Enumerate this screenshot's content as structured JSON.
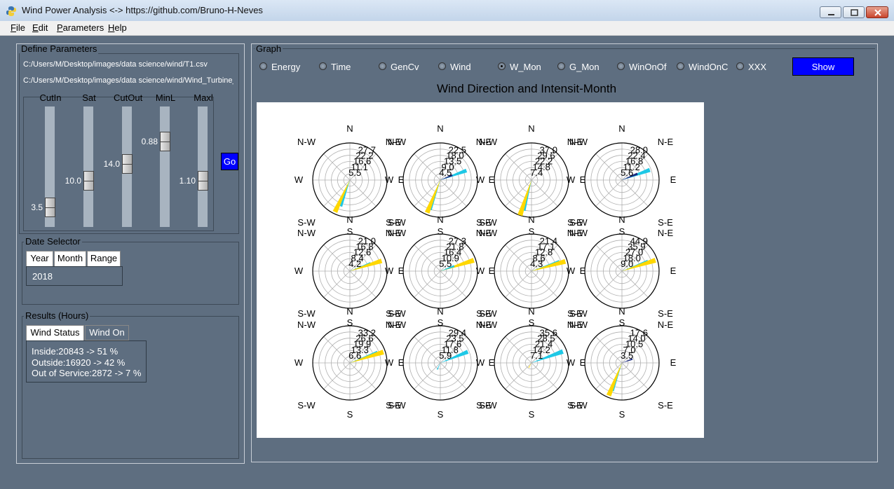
{
  "window": {
    "title": "Wind Power Analysis <-> https://github.com/Bruno-H-Neves"
  },
  "menu": [
    "File",
    "Edit",
    "Parameters",
    "Help"
  ],
  "define": {
    "legend": "Define Parameters",
    "path1": "C:/Users/M/Desktop/images/data science/wind/T1.csv",
    "path2": "C:/Users/M/Desktop/images/data science/wind/Wind_Turbine_",
    "sliders": [
      {
        "label": "CutIn",
        "value": "3.5",
        "level": 0.9
      },
      {
        "label": "Sat",
        "value": "10.0",
        "level": 0.64
      },
      {
        "label": "CutOut",
        "value": "14.0",
        "level": 0.47
      },
      {
        "label": "MinL",
        "value": "0.88",
        "level": 0.25
      },
      {
        "label": "Maxl",
        "value": "1.10",
        "level": 0.64
      }
    ],
    "go": "Go"
  },
  "date": {
    "legend": "Date Selector",
    "tabs": [
      "Year",
      "Month",
      "Range"
    ],
    "value": "2018"
  },
  "results": {
    "legend": "Results (Hours)",
    "tabs": [
      "Wind Status",
      "Wind On"
    ],
    "lines": [
      "Inside:20843 -> 51 %",
      "Outside:16920 -> 42 %",
      "Out of Service:2872 -> 7 %"
    ]
  },
  "graph": {
    "legend": "Graph",
    "options": [
      "Energy",
      "Time",
      "GenCv",
      "Wind",
      "W_Mon",
      "G_Mon",
      "WinOnOf",
      "WindOnC",
      "XXX"
    ],
    "selected": "W_Mon",
    "show": "Show"
  },
  "chart_data": {
    "type": "polar-bar",
    "title": "Wind Direction and Intensit-Month",
    "direction_labels": [
      "N",
      "N-E",
      "E",
      "S-E",
      "S",
      "S-W",
      "W",
      "N-W"
    ],
    "panels": [
      {
        "rings": [
          "5.5",
          "11.1",
          "16.6",
          "22.2",
          "27.7"
        ],
        "bars": [
          {
            "angle": 200,
            "value": 0.75,
            "color": "#1ec8e6"
          },
          {
            "angle": 205,
            "value": 0.95,
            "color": "#ffd700"
          }
        ]
      },
      {
        "rings": [
          "4.5",
          "9.0",
          "13.5",
          "18.0",
          "22.5"
        ],
        "bars": [
          {
            "angle": 70,
            "value": 0.75,
            "color": "#1ec8e6"
          },
          {
            "angle": 200,
            "value": 0.85,
            "color": "#1ec8e6"
          },
          {
            "angle": 202,
            "value": 0.95,
            "color": "#ffd700"
          },
          {
            "angle": 68,
            "value": 0.35,
            "color": "#1a2a80"
          }
        ]
      },
      {
        "rings": [
          "7.4",
          "14.8",
          "22.2",
          "29.6",
          "37.0"
        ],
        "bars": [
          {
            "angle": 195,
            "value": 0.85,
            "color": "#1ec8e6"
          },
          {
            "angle": 198,
            "value": 1.0,
            "color": "#ffd700"
          }
        ]
      },
      {
        "rings": [
          "5.6",
          "11.2",
          "16.8",
          "22.4",
          "28.0"
        ],
        "bars": [
          {
            "angle": 70,
            "value": 0.8,
            "color": "#1ec8e6"
          },
          {
            "angle": 68,
            "value": 0.45,
            "color": "#1a2a80"
          }
        ]
      },
      {
        "rings": [
          "4.2",
          "8.4",
          "12.6",
          "16.8",
          "21.0"
        ],
        "bars": [
          {
            "angle": 70,
            "value": 0.6,
            "color": "#1ec8e6"
          },
          {
            "angle": 72,
            "value": 0.9,
            "color": "#ffd700"
          }
        ]
      },
      {
        "rings": [
          "5.5",
          "10.9",
          "16.4",
          "21.8",
          "27.3"
        ],
        "bars": [
          {
            "angle": 72,
            "value": 0.95,
            "color": "#ffd700"
          },
          {
            "angle": 70,
            "value": 0.4,
            "color": "#1ec8e6"
          }
        ]
      },
      {
        "rings": [
          "4.3",
          "8.6",
          "12.8",
          "17.1",
          "21.4"
        ],
        "bars": [
          {
            "angle": 72,
            "value": 0.8,
            "color": "#1ec8e6"
          },
          {
            "angle": 74,
            "value": 0.95,
            "color": "#ffd700"
          }
        ]
      },
      {
        "rings": [
          "9.0",
          "18.0",
          "27.0",
          "35.9",
          "44.9"
        ],
        "bars": [
          {
            "angle": 70,
            "value": 0.75,
            "color": "#1ec8e6"
          },
          {
            "angle": 72,
            "value": 0.95,
            "color": "#ffd700"
          }
        ]
      },
      {
        "rings": [
          "6.6",
          "13.3",
          "19.9",
          "26.6",
          "33.2"
        ],
        "bars": [
          {
            "angle": 70,
            "value": 0.8,
            "color": "#1ec8e6"
          },
          {
            "angle": 72,
            "value": 0.95,
            "color": "#ffd700"
          }
        ]
      },
      {
        "rings": [
          "5.9",
          "11.8",
          "17.6",
          "23.5",
          "29.4"
        ],
        "bars": [
          {
            "angle": 68,
            "value": 0.8,
            "color": "#1ec8e6"
          },
          {
            "angle": 205,
            "value": 0.2,
            "color": "#1ec8e6"
          }
        ]
      },
      {
        "rings": [
          "7.1",
          "14.2",
          "21.4",
          "28.5",
          "35.6"
        ],
        "bars": [
          {
            "angle": 70,
            "value": 0.9,
            "color": "#1ec8e6"
          },
          {
            "angle": 210,
            "value": 0.15,
            "color": "#ffd700"
          }
        ]
      },
      {
        "rings": [
          "3.5",
          "7.0",
          "10.5",
          "14.0",
          "17.6"
        ],
        "bars": [
          {
            "angle": 200,
            "value": 0.8,
            "color": "#1ec8e6"
          },
          {
            "angle": 202,
            "value": 0.95,
            "color": "#ffd700"
          },
          {
            "angle": 70,
            "value": 0.3,
            "color": "#1a2a80"
          }
        ]
      }
    ]
  }
}
